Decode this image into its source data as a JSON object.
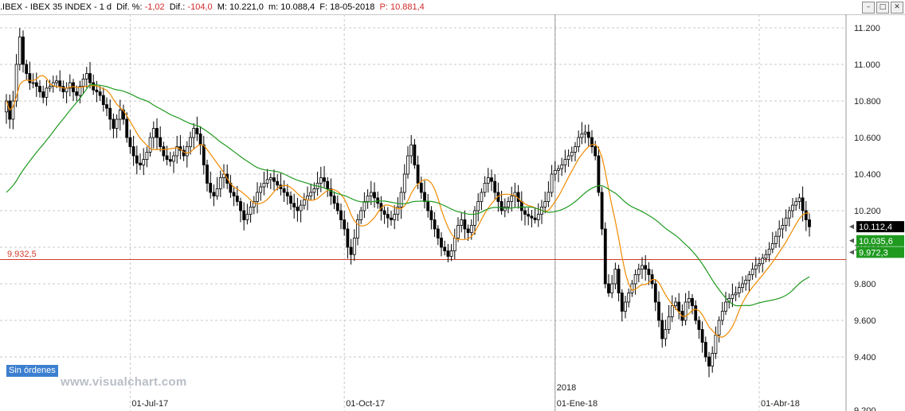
{
  "header": {
    "symbol": ".IBEX - IBEX 35 INDEX - 1 d",
    "dif_pct_label": "Dif. %:",
    "dif_pct_value": "-1,02",
    "dif_label": "Dif.:",
    "dif_value": "-104,0",
    "max_label": "M:",
    "max_value": "10.221,0",
    "min_label": "m:",
    "min_value": "10.088,4",
    "date_label": "F:",
    "date_value": "18-05-2018",
    "prev_label": "P:",
    "prev_value": "10.881,4"
  },
  "window_buttons": [
    "minimize-icon",
    "maximize-icon",
    "close-icon"
  ],
  "status_badge": "Sin órdenes",
  "brand": "www.visualchart.com",
  "colors": {
    "candle": "#000000",
    "ma_fast": "#f08a00",
    "ma_slow": "#1f9a1f",
    "hline": "#d23c2c",
    "grid": "#c8c8c8",
    "badge": "#3c7fd0"
  },
  "chart_data": {
    "type": "candlestick",
    "ylim": [
      9300,
      11300
    ],
    "yticks": [
      9400,
      9600,
      9800,
      10000,
      10200,
      10400,
      10600,
      10800,
      11000,
      11200
    ],
    "ytick_labels": [
      "9.400",
      "9.600",
      "9.800",
      "10.000",
      "10.200",
      "10.400",
      "10.600",
      "10.800",
      "11.000",
      "11.200"
    ],
    "bottom_partial_tick": "9.200",
    "x_labels": [
      {
        "label": "01-Jul-17",
        "index": 37
      },
      {
        "label": "01-Oct-17",
        "index": 101
      },
      {
        "label": "2018",
        "index": 164
      },
      {
        "label": "01-Ene-18",
        "index": 164
      },
      {
        "label": "01-Abr-18",
        "index": 225
      }
    ],
    "year_divider_index": 164,
    "horizontal_line": {
      "value": 9932.5,
      "label": "9.932,5"
    },
    "price_labels": [
      {
        "value": 10112.4,
        "text": "10.112,4",
        "color": "#000000"
      },
      {
        "value": 10035.6,
        "text": "10.035,6",
        "color": "#1f9a1f"
      },
      {
        "value": 9972.3,
        "text": "9.972,3",
        "color": "#1f9a1f"
      }
    ],
    "closes": [
      10800,
      10700,
      10800,
      11000,
      11150,
      11000,
      10950,
      10900,
      10900,
      10880,
      10850,
      10820,
      10870,
      10880,
      10900,
      10910,
      10880,
      10850,
      10870,
      10900,
      10850,
      10830,
      10880,
      10920,
      10950,
      10900,
      10860,
      10850,
      10830,
      10780,
      10760,
      10700,
      10650,
      10700,
      10750,
      10700,
      10600,
      10550,
      10500,
      10460,
      10450,
      10480,
      10520,
      10600,
      10650,
      10600,
      10550,
      10500,
      10480,
      10470,
      10500,
      10550,
      10530,
      10500,
      10550,
      10600,
      10650,
      10620,
      10560,
      10450,
      10350,
      10300,
      10280,
      10320,
      10380,
      10400,
      10350,
      10300,
      10280,
      10250,
      10200,
      10150,
      10180,
      10220,
      10250,
      10300,
      10330,
      10350,
      10370,
      10380,
      10360,
      10340,
      10320,
      10300,
      10280,
      10240,
      10220,
      10200,
      10230,
      10260,
      10280,
      10300,
      10320,
      10350,
      10380,
      10360,
      10320,
      10280,
      10240,
      10200,
      10150,
      10100,
      10000,
      9960,
      10050,
      10150,
      10200,
      10250,
      10280,
      10300,
      10270,
      10240,
      10200,
      10180,
      10160,
      10150,
      10180,
      10220,
      10300,
      10400,
      10500,
      10560,
      10450,
      10350,
      10300,
      10250,
      10200,
      10150,
      10100,
      10050,
      10000,
      9980,
      9950,
      9980,
      10050,
      10120,
      10150,
      10100,
      10080,
      10120,
      10200,
      10250,
      10300,
      10350,
      10380,
      10360,
      10300,
      10250,
      10200,
      10220,
      10250,
      10280,
      10300,
      10250,
      10200,
      10180,
      10170,
      10160,
      10150,
      10180,
      10220,
      10250,
      10300,
      10400,
      10420,
      10430,
      10450,
      10480,
      10500,
      10520,
      10550,
      10600,
      10620,
      10630,
      10600,
      10550,
      10500,
      10300,
      10100,
      9800,
      9750,
      9800,
      9880,
      9750,
      9650,
      9700,
      9750,
      9800,
      9850,
      9880,
      9900,
      9880,
      9850,
      9800,
      9700,
      9600,
      9500,
      9550,
      9620,
      9680,
      9700,
      9650,
      9600,
      9700,
      9720,
      9680,
      9600,
      9550,
      9480,
      9400,
      9350,
      9420,
      9520,
      9600,
      9650,
      9700,
      9720,
      9740,
      9750,
      9780,
      9800,
      9820,
      9850,
      9880,
      9900,
      9910,
      9940,
      9960,
      9990,
      10020,
      10060,
      10100,
      10120,
      10160,
      10200,
      10230,
      10250,
      10270,
      10200,
      10150,
      10112
    ]
  }
}
